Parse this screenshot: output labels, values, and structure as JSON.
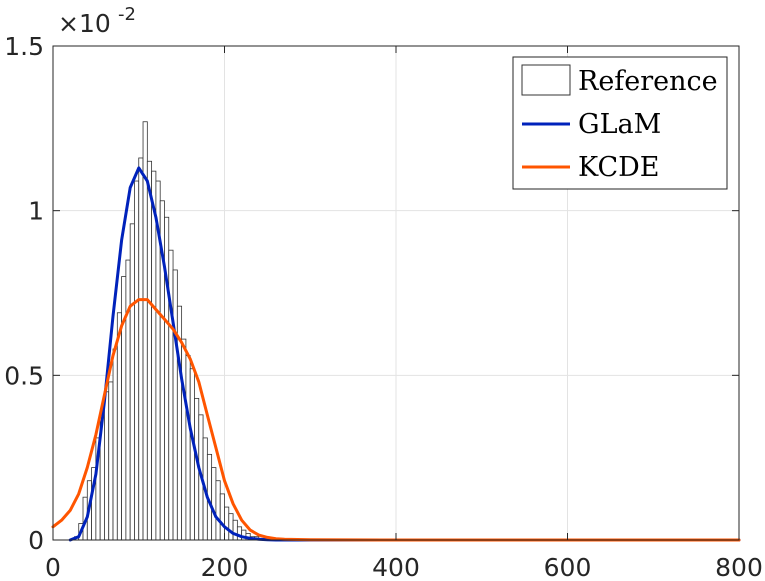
{
  "chart_data": {
    "type": "histogram+line",
    "title": "",
    "xlabel": "",
    "ylabel": "",
    "xlim": [
      0,
      800
    ],
    "ylim": [
      0,
      1.5
    ],
    "y_exponent_label": "×10",
    "y_exponent_power": "-2",
    "x_ticks": [
      0,
      200,
      400,
      600,
      800
    ],
    "x_tick_labels": [
      "0",
      "200",
      "400",
      "600",
      "800"
    ],
    "y_ticks": [
      0,
      0.5,
      1,
      1.5
    ],
    "y_tick_labels": [
      "0",
      "0.5",
      "1",
      "1.5"
    ],
    "grid": true,
    "legend_position": "top-right",
    "histogram": {
      "name": "Reference",
      "bin_width": 5,
      "bin_start": 25,
      "values": [
        0.01,
        0.05,
        0.13,
        0.18,
        0.22,
        0.31,
        0.38,
        0.45,
        0.48,
        0.58,
        0.69,
        0.8,
        0.85,
        0.96,
        1.09,
        1.16,
        1.27,
        1.15,
        1.12,
        1.09,
        1.03,
        0.98,
        0.88,
        0.82,
        0.71,
        0.61,
        0.56,
        0.52,
        0.43,
        0.38,
        0.31,
        0.26,
        0.22,
        0.18,
        0.14,
        0.1,
        0.08,
        0.06,
        0.04,
        0.03,
        0.02,
        0.01,
        0.01,
        0.005,
        0.005,
        0.002,
        0.0,
        0.0,
        0.0,
        0.002
      ]
    },
    "series": [
      {
        "name": "GLaM",
        "color": "#0022bb",
        "x": [
          20,
          30,
          40,
          50,
          60,
          70,
          80,
          90,
          100,
          110,
          120,
          130,
          140,
          150,
          160,
          170,
          180,
          190,
          200,
          210,
          220,
          230,
          240,
          250,
          260,
          300,
          400,
          500,
          600,
          700,
          800
        ],
        "y": [
          0.0,
          0.01,
          0.07,
          0.2,
          0.42,
          0.68,
          0.91,
          1.07,
          1.13,
          1.09,
          0.98,
          0.83,
          0.66,
          0.49,
          0.34,
          0.22,
          0.13,
          0.07,
          0.04,
          0.02,
          0.01,
          0.005,
          0.002,
          0.001,
          0.0,
          0.0,
          0.0,
          0.0,
          0.0,
          0.0,
          0.0
        ]
      },
      {
        "name": "KCDE",
        "color": "#ff5500",
        "x": [
          0,
          10,
          20,
          30,
          40,
          50,
          60,
          70,
          80,
          90,
          100,
          110,
          120,
          130,
          140,
          150,
          160,
          170,
          180,
          190,
          200,
          210,
          220,
          230,
          240,
          250,
          260,
          270,
          300,
          400,
          500,
          600,
          700,
          800
        ],
        "y": [
          0.04,
          0.06,
          0.09,
          0.14,
          0.22,
          0.32,
          0.44,
          0.56,
          0.65,
          0.71,
          0.73,
          0.73,
          0.7,
          0.67,
          0.64,
          0.6,
          0.55,
          0.48,
          0.38,
          0.28,
          0.18,
          0.11,
          0.06,
          0.03,
          0.015,
          0.008,
          0.004,
          0.002,
          0.001,
          0.0,
          0.0,
          0.0,
          0.0,
          0.0
        ]
      }
    ]
  }
}
